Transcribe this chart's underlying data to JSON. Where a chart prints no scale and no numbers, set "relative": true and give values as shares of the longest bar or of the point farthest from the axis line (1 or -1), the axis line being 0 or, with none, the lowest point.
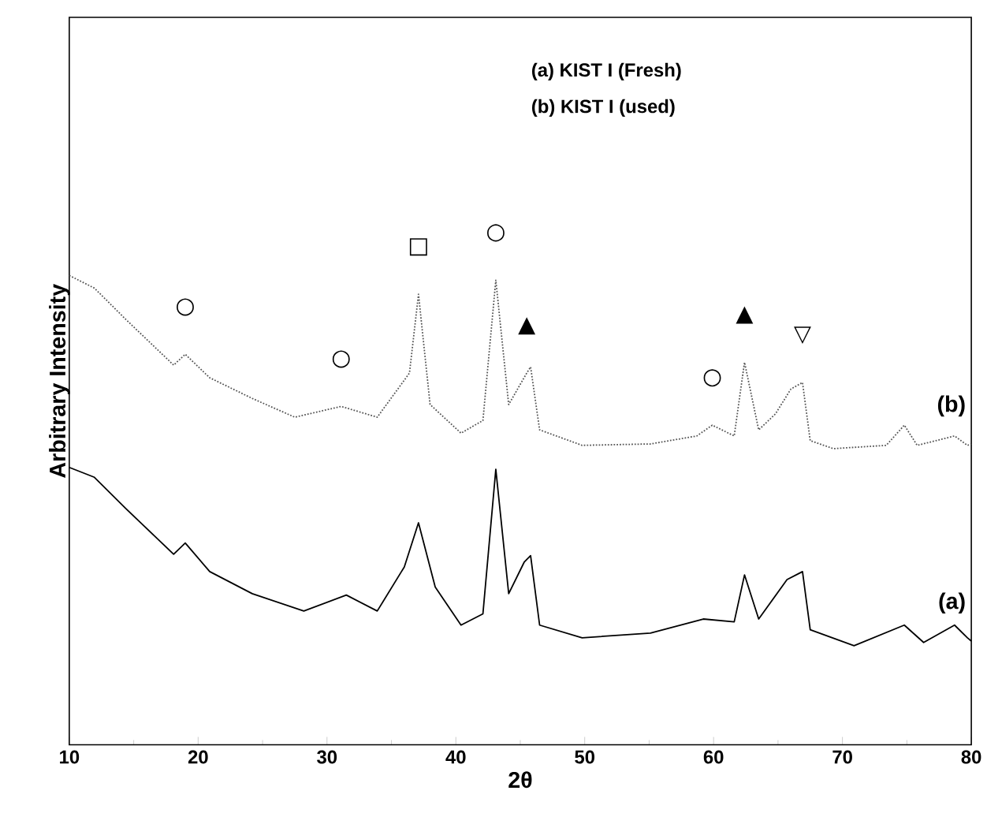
{
  "chart_data": {
    "type": "line",
    "xlabel": "2θ",
    "ylabel": "Arbitrary Intensity",
    "relative": true,
    "xlim": [
      10,
      80
    ],
    "xticks": [
      10,
      20,
      30,
      40,
      50,
      60,
      70,
      80
    ],
    "series": [
      {
        "name": "(b)",
        "color": "#555555",
        "line_style": "dotted",
        "x": [
          10,
          11.95,
          14.4,
          18.1,
          19.0,
          20.9,
          24.2,
          27.5,
          31.1,
          33.9,
          36.4,
          37.1,
          38.0,
          40.4,
          42.1,
          43.1,
          44.1,
          45.5,
          45.8,
          46.5,
          49.8,
          55.1,
          58.7,
          59.9,
          61.6,
          62.4,
          63.5,
          64.8,
          66.0,
          66.9,
          67.5,
          69.3,
          73.4,
          74.8,
          75.8,
          78.7,
          79.7,
          80
        ],
        "values": [
          1.0,
          0.973,
          0.906,
          0.809,
          0.832,
          0.782,
          0.738,
          0.698,
          0.721,
          0.698,
          0.792,
          0.96,
          0.725,
          0.664,
          0.691,
          0.99,
          0.725,
          0.792,
          0.805,
          0.671,
          0.638,
          0.641,
          0.658,
          0.681,
          0.658,
          0.815,
          0.671,
          0.705,
          0.758,
          0.772,
          0.648,
          0.631,
          0.638,
          0.681,
          0.638,
          0.658,
          0.638,
          0.641
        ]
      },
      {
        "name": "(a)",
        "color": "#000000",
        "line_style": "solid",
        "x": [
          10,
          11.95,
          14.4,
          18.1,
          19.0,
          20.9,
          24.2,
          28.2,
          31.5,
          33.9,
          36.0,
          37.1,
          38.4,
          40.4,
          42.1,
          43.1,
          44.1,
          45.3,
          45.8,
          46.5,
          49.8,
          55.1,
          59.2,
          61.6,
          62.4,
          63.5,
          65.7,
          66.9,
          67.5,
          70.9,
          74.8,
          76.3,
          78.7,
          79.7,
          80
        ],
        "values": [
          0.591,
          0.57,
          0.503,
          0.406,
          0.43,
          0.369,
          0.322,
          0.285,
          0.319,
          0.285,
          0.379,
          0.473,
          0.336,
          0.255,
          0.279,
          0.587,
          0.322,
          0.389,
          0.403,
          0.255,
          0.228,
          0.238,
          0.268,
          0.262,
          0.362,
          0.268,
          0.352,
          0.369,
          0.245,
          0.211,
          0.255,
          0.218,
          0.255,
          0.228,
          0.221
        ]
      }
    ],
    "annotations": [
      "(a)  KIST I (Fresh)",
      "(b)  KIST I (used)",
      {
        "text": "○",
        "x": 19.0,
        "y": 0.832
      },
      {
        "text": "○",
        "x": 31.1,
        "y": 0.721
      },
      {
        "text": "□",
        "x": 37.1,
        "y": 0.96
      },
      {
        "text": "○",
        "x": 43.1,
        "y": 0.99
      },
      {
        "text": "▲",
        "x": 45.5,
        "y": 0.792
      },
      {
        "text": "○",
        "x": 59.9,
        "y": 0.681
      },
      {
        "text": "▲",
        "x": 62.4,
        "y": 0.815
      },
      {
        "text": "▽",
        "x": 66.9,
        "y": 0.772
      }
    ]
  }
}
